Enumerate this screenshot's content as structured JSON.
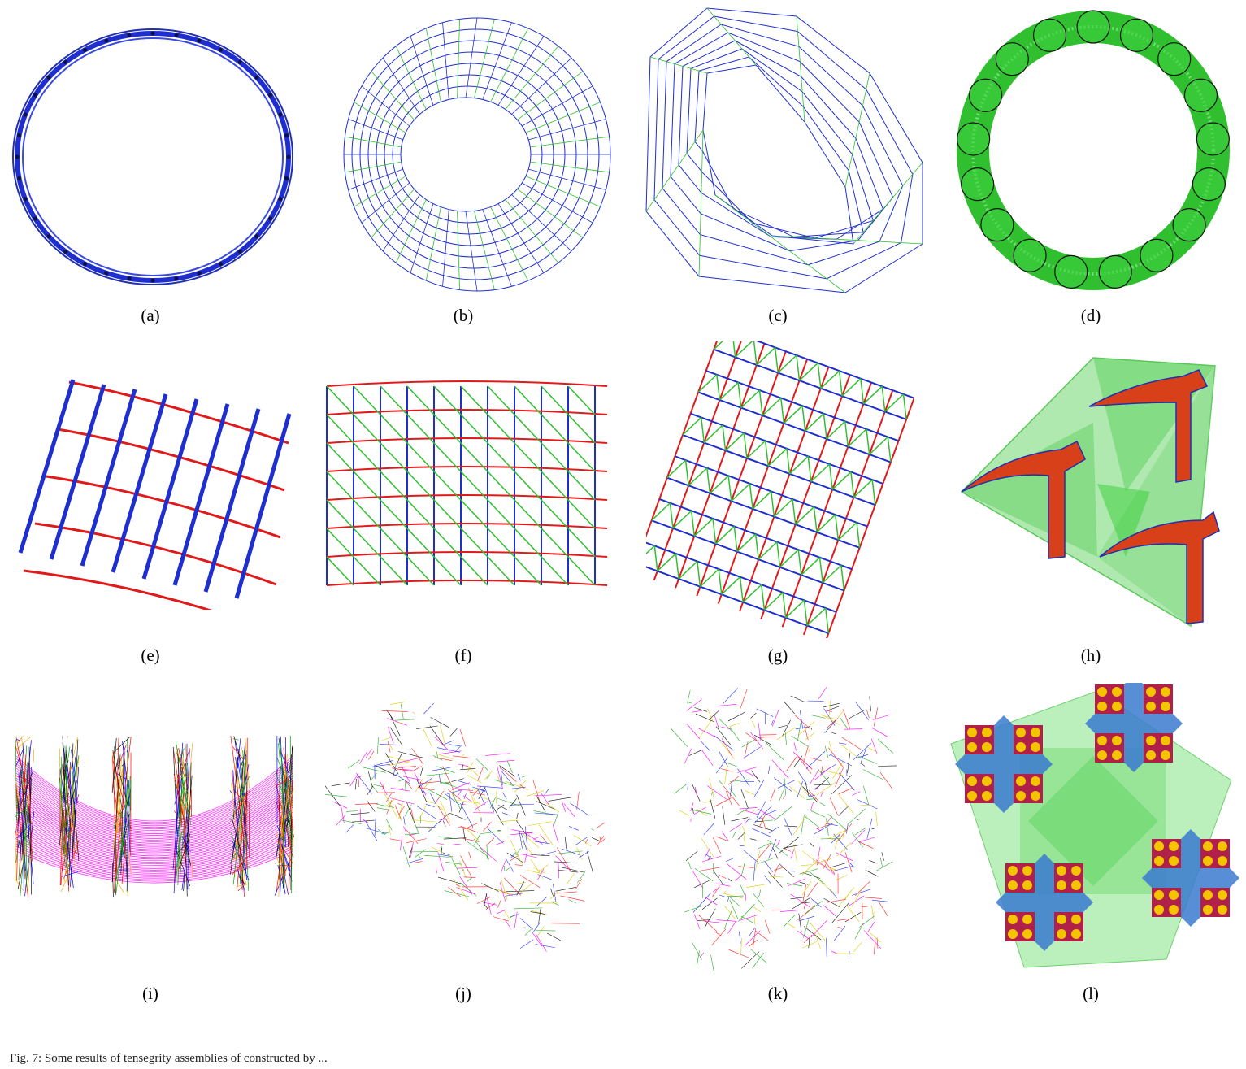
{
  "figure": {
    "panels": [
      {
        "id": "a",
        "label": "(a)"
      },
      {
        "id": "b",
        "label": "(b)"
      },
      {
        "id": "c",
        "label": "(c)"
      },
      {
        "id": "d",
        "label": "(d)"
      },
      {
        "id": "e",
        "label": "(e)"
      },
      {
        "id": "f",
        "label": "(f)"
      },
      {
        "id": "g",
        "label": "(g)"
      },
      {
        "id": "h",
        "label": "(h)"
      },
      {
        "id": "i",
        "label": "(i)"
      },
      {
        "id": "j",
        "label": "(j)"
      },
      {
        "id": "k",
        "label": "(k)"
      },
      {
        "id": "l",
        "label": "(l)"
      }
    ],
    "caption": "Fig. 7: Some results of tensegrity assemblies of constructed by ..."
  },
  "colors": {
    "blue": "#1f2fcf",
    "red": "#e01a1a",
    "green": "#2fbf2f",
    "light_green": "#8fe08f",
    "orange_red": "#d8401a",
    "magenta": "#ff33ff",
    "dark": "#111111"
  }
}
